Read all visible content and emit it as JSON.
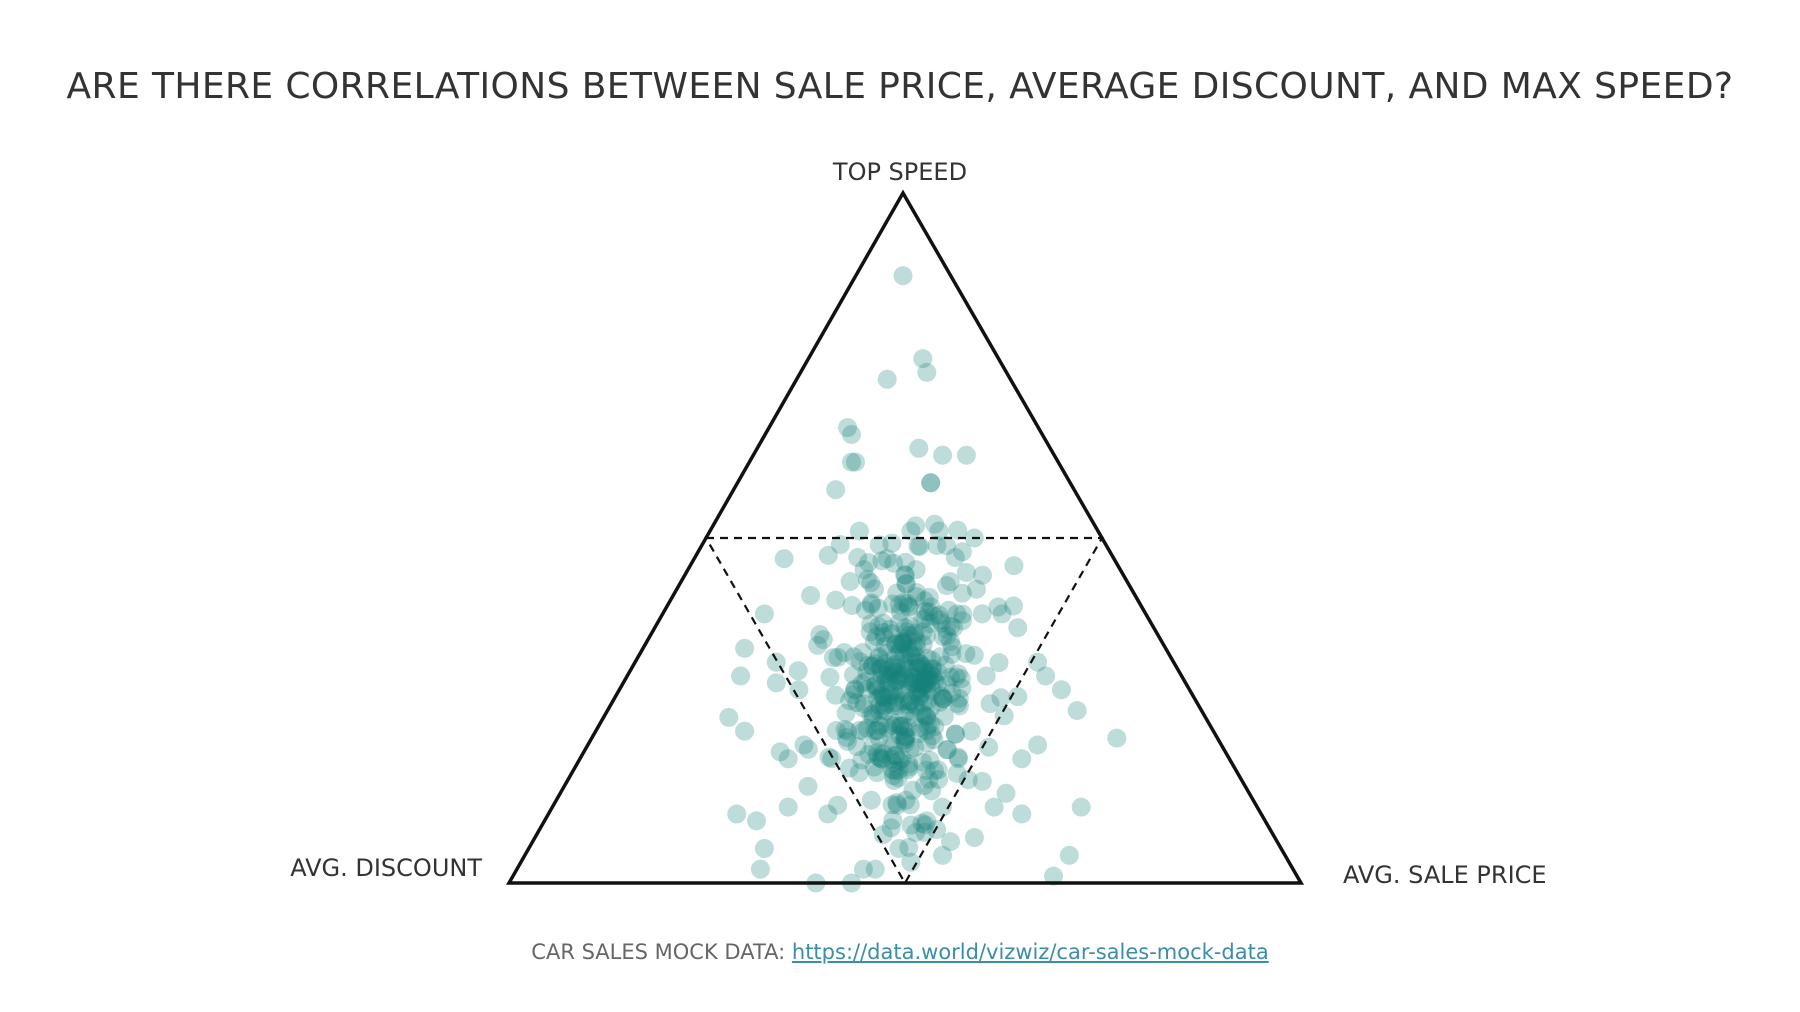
{
  "title": "ARE THERE CORRELATIONS BETWEEN SALE PRICE, AVERAGE DISCOUNT, AND MAX SPEED?",
  "footer": {
    "prefix": "CAR SALES MOCK DATA: ",
    "link_text": "https://data.world/vizwiz/car-sales-mock-data"
  },
  "colors": {
    "point": "#15807a",
    "frame": "#111111",
    "dashes": "#111111"
  },
  "chart_data": {
    "type": "scatter",
    "subtype": "ternary",
    "title": "ARE THERE CORRELATIONS BETWEEN SALE PRICE, AVERAGE DISCOUNT, AND MAX SPEED?",
    "vertices": {
      "top": "TOP SPEED",
      "left": "AVG. DISCOUNT",
      "right": "AVG. SALE PRICE"
    },
    "reference_lines": "dashed inner triangle joining edge midpoints",
    "points": [
      [
        0.0,
        0.88
      ],
      [
        -0.04,
        0.73
      ],
      [
        0.06,
        0.74
      ],
      [
        0.05,
        0.76
      ],
      [
        -0.14,
        0.66
      ],
      [
        -0.13,
        0.65
      ],
      [
        -0.12,
        0.61
      ],
      [
        -0.13,
        0.61
      ],
      [
        0.04,
        0.63
      ],
      [
        0.1,
        0.62
      ],
      [
        0.16,
        0.62
      ],
      [
        0.07,
        0.58
      ],
      [
        0.07,
        0.58
      ],
      [
        -0.17,
        0.57
      ],
      [
        -0.3,
        0.47
      ],
      [
        -0.11,
        0.51
      ],
      [
        0.15,
        0.48
      ],
      [
        -0.35,
        0.39
      ],
      [
        -0.4,
        0.34
      ],
      [
        -0.32,
        0.32
      ],
      [
        -0.41,
        0.3
      ],
      [
        -0.32,
        0.29
      ],
      [
        -0.44,
        0.24
      ],
      [
        -0.4,
        0.22
      ],
      [
        -0.31,
        0.19
      ],
      [
        -0.18,
        0.18
      ],
      [
        -0.42,
        0.1
      ],
      [
        -0.37,
        0.09
      ],
      [
        -0.35,
        0.05
      ],
      [
        -0.36,
        0.02
      ],
      [
        -0.29,
        0.11
      ],
      [
        -0.24,
        0.14
      ],
      [
        -0.19,
        0.1
      ],
      [
        -0.13,
        0.0
      ],
      [
        -0.1,
        0.02
      ],
      [
        -0.07,
        0.02
      ],
      [
        -0.22,
        0.0
      ],
      [
        -0.05,
        0.07
      ],
      [
        -0.01,
        0.05
      ],
      [
        0.02,
        0.03
      ],
      [
        0.1,
        0.04
      ],
      [
        0.14,
        0.18
      ],
      [
        0.23,
        0.11
      ],
      [
        0.26,
        0.13
      ],
      [
        0.3,
        0.1
      ],
      [
        0.34,
        0.2
      ],
      [
        0.36,
        0.3
      ],
      [
        0.34,
        0.32
      ],
      [
        0.4,
        0.28
      ],
      [
        0.44,
        0.25
      ],
      [
        0.54,
        0.21
      ],
      [
        0.45,
        0.11
      ],
      [
        0.42,
        0.04
      ],
      [
        0.38,
        0.01
      ],
      [
        0.3,
        0.18
      ],
      [
        0.29,
        0.27
      ],
      [
        0.22,
        0.26
      ],
      [
        0.18,
        0.33
      ],
      [
        0.29,
        0.37
      ],
      [
        0.24,
        0.4
      ],
      [
        0.2,
        0.39
      ],
      [
        0.16,
        0.45
      ],
      [
        0.18,
        0.5
      ],
      [
        0.28,
        0.46
      ],
      [
        0.25,
        0.39
      ],
      [
        -0.06,
        0.49
      ],
      [
        0.08,
        0.52
      ],
      [
        0.02,
        0.51
      ],
      [
        -0.09,
        0.44
      ],
      [
        -0.04,
        0.47
      ],
      [
        -0.17,
        0.41
      ],
      [
        -0.21,
        0.36
      ],
      [
        -0.14,
        0.22
      ],
      [
        -0.11,
        0.16
      ],
      [
        -0.08,
        0.12
      ],
      [
        -0.03,
        0.08
      ],
      [
        0.06,
        0.09
      ],
      [
        0.09,
        0.15
      ],
      [
        0.12,
        0.06
      ],
      [
        -0.29,
        0.18
      ],
      [
        -0.25,
        0.2
      ],
      [
        0.15,
        0.42
      ],
      [
        0.21,
        0.3
      ],
      [
        0.12,
        0.35
      ]
    ],
    "cluster": {
      "center": [
        0.0,
        0.29
      ],
      "spread": [
        0.09,
        0.09
      ],
      "count": 380
    }
  }
}
